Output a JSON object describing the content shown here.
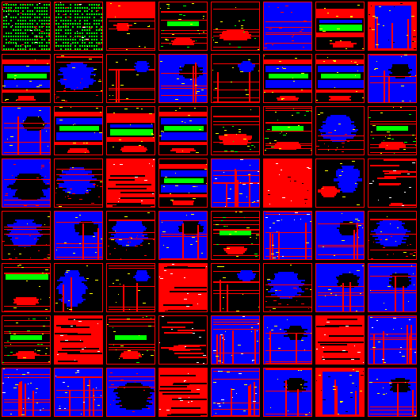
{
  "grid": {
    "rows": 8,
    "cols": 8,
    "palette": {
      "black": "#000000",
      "red": "#ff0000",
      "blue": "#0000ff",
      "green": "#00ff00",
      "yellow": "#ffff00",
      "white": "#ffffff"
    },
    "tiles": [
      [
        "green-text",
        "green-text",
        "red-top-black",
        "black-red-green",
        "black-red-bottom",
        "blue-red-top",
        "stripes-green",
        "red-blue-pillars"
      ],
      [
        "stripes-blue",
        "black-blue-blob",
        "black-red-pillar",
        "blue-red-pillar",
        "black-red-pillar",
        "stripes-blue",
        "stripes-blue",
        "blue-red-pillar"
      ],
      [
        "blue-red-pillar",
        "stripes-blue",
        "stripes-green",
        "stripes-blue",
        "black-red-bottom",
        "black-red-green",
        "black-blue-blob",
        "black-red-green"
      ],
      [
        "blue-black-blob",
        "black-blue-blob",
        "red-black-lines",
        "stripes-blue",
        "blue-red-pillars",
        "red-solid",
        "black-red-blob",
        "black-red-lines"
      ],
      [
        "black-blue-blob",
        "blue-red-pillar",
        "black-blue-blob",
        "blue-red-pillar",
        "black-red-green",
        "blue-red-pillars",
        "blue-red-pillar",
        "black-blue-blob"
      ],
      [
        "green-red-black",
        "black-blue-pillar",
        "black-red-pillar",
        "red-black-lines",
        "black-red-pillar",
        "black-blue-blob",
        "blue-red-pillar",
        "blue-red-pillar"
      ],
      [
        "black-red-green",
        "red-black-lines",
        "black-red-green",
        "black-red-lines",
        "blue-red-pillars",
        "blue-red-pillar",
        "red-black-lines",
        "blue-red-pillars"
      ],
      [
        "blue-red-pillars",
        "blue-red-pillars",
        "blue-black-blob",
        "red-black-lines",
        "blue-red-pillars",
        "blue-red-pillar",
        "red-blue-pillars",
        "blue-red-pillar"
      ]
    ]
  }
}
